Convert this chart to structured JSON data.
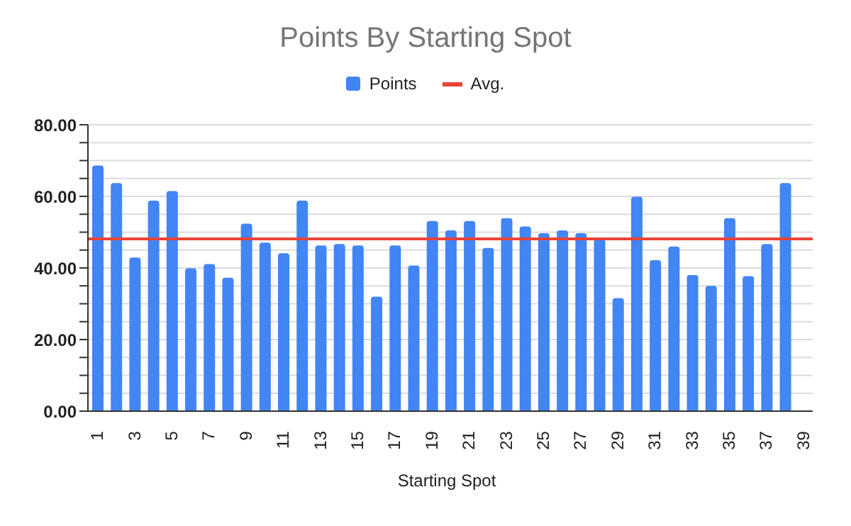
{
  "chart_data": {
    "type": "bar",
    "title": "Points By Starting Spot",
    "xlabel": "Starting Spot",
    "categories": [
      "1",
      null,
      "3",
      null,
      "5",
      null,
      "7",
      null,
      "9",
      null,
      "11",
      null,
      "13",
      null,
      "15",
      null,
      "17",
      null,
      "19",
      null,
      "21",
      null,
      "23",
      null,
      "25",
      null,
      "27",
      null,
      "29",
      null,
      "31",
      null,
      "33",
      null,
      "35",
      null,
      "37",
      null,
      "39"
    ],
    "series": [
      {
        "name": "Points",
        "color": "#4285f4",
        "values": [
          68.6,
          63.7,
          42.9,
          58.8,
          61.5,
          39.9,
          41.1,
          37.3,
          52.4,
          47.1,
          44.1,
          58.8,
          46.3,
          46.7,
          46.3,
          32.0,
          46.3,
          40.7,
          53.1,
          50.5,
          53.1,
          45.6,
          53.9,
          51.6,
          49.7,
          50.5,
          49.7,
          48.0,
          31.6,
          59.9,
          42.2,
          46.0,
          38.0,
          35.0,
          53.9,
          37.7,
          46.7,
          63.7,
          null
        ]
      }
    ],
    "ref_lines": [
      {
        "axis": "y",
        "value": 48.1,
        "label": "Avg.",
        "color": "#ea4335"
      }
    ],
    "ylim": [
      0,
      80
    ],
    "yticks": [
      {
        "value": 0,
        "label": "0.00"
      },
      {
        "value": 5,
        "label": null
      },
      {
        "value": 10,
        "label": null
      },
      {
        "value": 15,
        "label": null
      },
      {
        "value": 20,
        "label": "20.00"
      },
      {
        "value": 25,
        "label": null
      },
      {
        "value": 30,
        "label": null
      },
      {
        "value": 35,
        "label": null
      },
      {
        "value": 40,
        "label": "40.00"
      },
      {
        "value": 45,
        "label": null
      },
      {
        "value": 50,
        "label": null
      },
      {
        "value": 55,
        "label": null
      },
      {
        "value": 60,
        "label": "60.00"
      },
      {
        "value": 65,
        "label": null
      },
      {
        "value": 70,
        "label": null
      },
      {
        "value": 75,
        "label": null
      },
      {
        "value": 80,
        "label": "80.00"
      }
    ],
    "grid": "y",
    "legend": "top"
  }
}
